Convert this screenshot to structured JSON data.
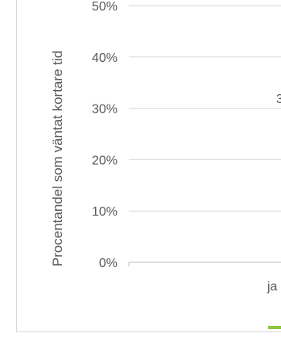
{
  "chart_data": {
    "type": "line",
    "ylabel": "Procentandel som väntat kortare tid",
    "ylim": [
      0,
      0.5
    ],
    "y_ticks": [
      "0%",
      "10%",
      "20%",
      "30%",
      "40%",
      "50%"
    ],
    "categories": [
      "ja"
    ],
    "series": [
      {
        "color": "#8dc63f",
        "values": [
          null
        ]
      }
    ],
    "annotations": [
      {
        "text": "3",
        "y": 0.32
      }
    ],
    "grid": true,
    "legend": "bottom"
  }
}
